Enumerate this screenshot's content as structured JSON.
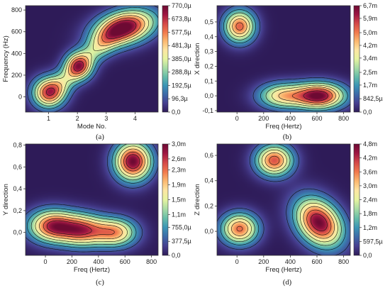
{
  "colors": {
    "colormap": [
      "#2e1b58",
      "#463e8f",
      "#3d6aa8",
      "#3b95b5",
      "#67bda8",
      "#a9dca5",
      "#e6f4a0",
      "#fde6a2",
      "#fbb870",
      "#f1794d",
      "#d44848",
      "#9e1642",
      "#6d0a33"
    ],
    "contour_line": "#111111",
    "background": "#ffffff"
  },
  "chart_data": [
    {
      "type": "heatmap",
      "panel": "(a)",
      "xlabel": "Mode No.",
      "ylabel": "Frequency (Hz)",
      "xlim": [
        0.2,
        4.8
      ],
      "ylim": [
        -140,
        840
      ],
      "xticks": [
        1,
        2,
        3,
        4
      ],
      "xtick_labels": [
        "1",
        "2",
        "3",
        "4"
      ],
      "yticks": [
        0,
        200,
        400,
        600,
        800
      ],
      "ytick_labels": [
        "0",
        "200",
        "400",
        "600",
        "800"
      ],
      "colorbar_max": 770,
      "colorbar_tick_values": [
        0,
        96.3,
        192.5,
        288.8,
        385.0,
        481.3,
        577.5,
        673.8,
        770.0
      ],
      "colorbar_labels": [
        "0,0",
        "96,3µ",
        "192,5µ",
        "288,8µ",
        "385,0µ",
        "481,3µ",
        "577,5µ",
        "673,8µ",
        "770,0µ"
      ],
      "contour_levels": [
        96.3,
        192.5,
        288.8,
        385.0,
        481.3,
        577.5,
        673.8
      ],
      "peaks": [
        {
          "x": 1.0,
          "y": 40,
          "sx": 0.38,
          "sy": 95,
          "a": 610,
          "rho": 0
        },
        {
          "x": 2.05,
          "y": 285,
          "sx": 0.32,
          "sy": 85,
          "a": 590,
          "rho": 0
        },
        {
          "x": 3.65,
          "y": 640,
          "sx": 0.7,
          "sy": 110,
          "a": 770,
          "rho": 0.3
        },
        {
          "x": 1.55,
          "y": 150,
          "sx": 0.42,
          "sy": 110,
          "a": 250,
          "rho": 0.5
        },
        {
          "x": 2.8,
          "y": 470,
          "sx": 0.5,
          "sy": 120,
          "a": 300,
          "rho": 0.6
        }
      ]
    },
    {
      "type": "heatmap",
      "panel": "(b)",
      "xlabel": "Freq (Hertz)",
      "ylabel": "X direction",
      "xlim": [
        -150,
        850
      ],
      "ylim": [
        -0.11,
        0.61
      ],
      "xticks": [
        0,
        200,
        400,
        600,
        800
      ],
      "xtick_labels": [
        "0",
        "200",
        "400",
        "600",
        "800"
      ],
      "yticks": [
        -0.1,
        0.0,
        0.1,
        0.2,
        0.3,
        0.4,
        0.5
      ],
      "ytick_labels": [
        "-0,1",
        "0,0",
        "0,1",
        "0,2",
        "0,3",
        "0,4",
        "0,5"
      ],
      "colorbar_max": 6700,
      "colorbar_tick_values": [
        0,
        842.5,
        1700,
        2500,
        3400,
        4200,
        5000,
        5900,
        6700
      ],
      "colorbar_labels": [
        "0,0",
        "842,5µ",
        "1,7m",
        "2,5m",
        "3,4m",
        "4,2m",
        "5,0m",
        "5,9m",
        "6,7m"
      ],
      "contour_levels": [
        842.5,
        1700,
        2500,
        3400,
        4200,
        5000,
        5900
      ],
      "peaks": [
        {
          "x": 20,
          "y": 0.47,
          "sx": 80,
          "sy": 0.075,
          "a": 5300,
          "rho": 0
        },
        {
          "x": 615,
          "y": 0.0,
          "sx": 130,
          "sy": 0.06,
          "a": 6700,
          "rho": 0
        },
        {
          "x": 330,
          "y": 0.0,
          "sx": 120,
          "sy": 0.06,
          "a": 3800,
          "rho": 0
        }
      ]
    },
    {
      "type": "heatmap",
      "panel": "(c)",
      "xlabel": "Freq (Hertz)",
      "ylabel": "Y direction",
      "xlim": [
        -150,
        850
      ],
      "ylim": [
        -0.21,
        0.81
      ],
      "xticks": [
        0,
        200,
        400,
        600,
        800
      ],
      "xtick_labels": [
        "0",
        "200",
        "400",
        "600",
        "800"
      ],
      "yticks": [
        0.0,
        0.2,
        0.4,
        0.6,
        0.8
      ],
      "ytick_labels": [
        "0,0",
        "0,2",
        "0,4",
        "0,6",
        "0,8"
      ],
      "colorbar_max": 3000,
      "colorbar_tick_values": [
        0,
        377.5,
        755,
        1100,
        1500,
        1900,
        2300,
        2600,
        3000
      ],
      "colorbar_labels": [
        "0,0",
        "377,5µ",
        "755,0µ",
        "1,1m",
        "1,5m",
        "1,9m",
        "2,3m",
        "2,6m",
        "3,0m"
      ],
      "contour_levels": [
        377.5,
        755,
        1100,
        1500,
        1900,
        2300,
        2600
      ],
      "peaks": [
        {
          "x": 50,
          "y": 0.06,
          "sx": 120,
          "sy": 0.1,
          "a": 2550,
          "rho": 0
        },
        {
          "x": 280,
          "y": 0.02,
          "sx": 120,
          "sy": 0.1,
          "a": 2350,
          "rho": 0
        },
        {
          "x": 530,
          "y": 0.0,
          "sx": 110,
          "sy": 0.09,
          "a": 2000,
          "rho": 0
        },
        {
          "x": 660,
          "y": 0.65,
          "sx": 95,
          "sy": 0.12,
          "a": 3000,
          "rho": 0
        }
      ]
    },
    {
      "type": "heatmap",
      "panel": "(d)",
      "xlabel": "Freq (Hertz)",
      "ylabel": "Z direction",
      "xlim": [
        -150,
        850
      ],
      "ylim": [
        -0.19,
        0.69
      ],
      "xticks": [
        0,
        200,
        400,
        600,
        800
      ],
      "xtick_labels": [
        "0",
        "200",
        "400",
        "600",
        "800"
      ],
      "yticks": [
        0.0,
        0.2,
        0.4,
        0.6
      ],
      "ytick_labels": [
        "0,0",
        "0,2",
        "0,4",
        "0,6"
      ],
      "colorbar_max": 4800,
      "colorbar_tick_values": [
        0,
        597.5,
        1200,
        1800,
        2400,
        3000,
        3600,
        4200,
        4800
      ],
      "colorbar_labels": [
        "0,0",
        "597,5µ",
        "1,2m",
        "1,8m",
        "2,4m",
        "3,0m",
        "3,6m",
        "4,2m",
        "4,8m"
      ],
      "contour_levels": [
        597.5,
        1200,
        1800,
        2400,
        3000,
        3600,
        4200
      ],
      "peaks": [
        {
          "x": 20,
          "y": 0.02,
          "sx": 95,
          "sy": 0.085,
          "a": 3700,
          "rho": 0
        },
        {
          "x": 280,
          "y": 0.56,
          "sx": 95,
          "sy": 0.085,
          "a": 3900,
          "rho": 0
        },
        {
          "x": 615,
          "y": 0.07,
          "sx": 120,
          "sy": 0.13,
          "a": 4800,
          "rho": -0.3
        }
      ]
    }
  ]
}
